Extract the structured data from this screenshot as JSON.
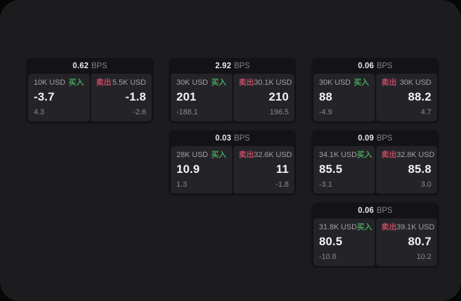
{
  "labels": {
    "bps_unit": "BPS",
    "buy": "买入",
    "sell": "卖出"
  },
  "colors": {
    "buy": "#46a35c",
    "sell": "#c04a63",
    "surface": "#1c1c1e",
    "card": "#131315",
    "panel": "#242428",
    "outside": "#060607"
  },
  "cards": [
    {
      "row": 1,
      "col": 1,
      "bps": "0.62",
      "buy": {
        "size": "10K USD",
        "value": "-3.7",
        "sub": "4.3"
      },
      "sell": {
        "size": "5.5K USD",
        "value": "-1.8",
        "sub": "-2.6"
      }
    },
    {
      "row": 1,
      "col": 2,
      "bps": "2.92",
      "buy": {
        "size": "30K USD",
        "value": "201",
        "sub": "-188.1"
      },
      "sell": {
        "size": "30.1K USD",
        "value": "210",
        "sub": "196.5"
      }
    },
    {
      "row": 1,
      "col": 3,
      "bps": "0.06",
      "buy": {
        "size": "30K USD",
        "value": "88",
        "sub": "-4.9"
      },
      "sell": {
        "size": "30K USD",
        "value": "88.2",
        "sub": "4.7"
      }
    },
    {
      "row": 2,
      "col": 2,
      "bps": "0.03",
      "buy": {
        "size": "28K USD",
        "value": "10.9",
        "sub": "1.3"
      },
      "sell": {
        "size": "32.6K USD",
        "value": "11",
        "sub": "-1.8"
      }
    },
    {
      "row": 2,
      "col": 3,
      "bps": "0.09",
      "buy": {
        "size": "34.1K USD",
        "value": "85.5",
        "sub": "-3.1"
      },
      "sell": {
        "size": "32.8K USD",
        "value": "85.8",
        "sub": "3.0"
      }
    },
    {
      "row": 3,
      "col": 3,
      "bps": "0.06",
      "buy": {
        "size": "31.8K USD",
        "value": "80.5",
        "sub": "-10.8"
      },
      "sell": {
        "size": "39.1K USD",
        "value": "80.7",
        "sub": "10.2"
      }
    }
  ]
}
